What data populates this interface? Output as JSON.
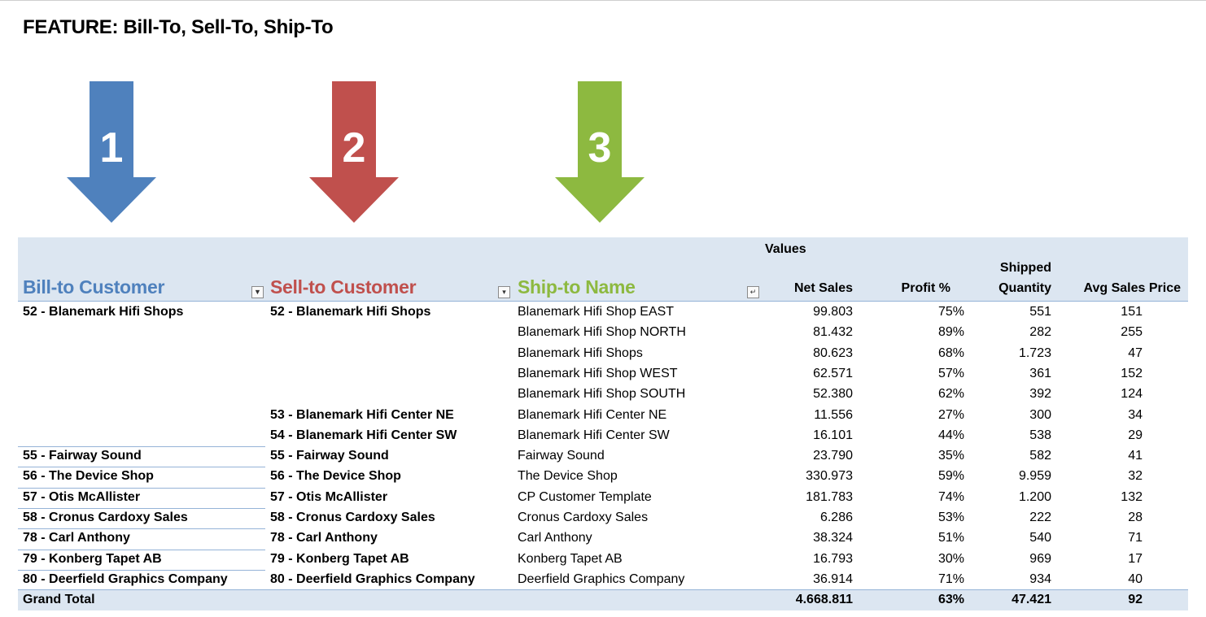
{
  "title": "FEATURE: Bill-To, Sell-To, Ship-To",
  "arrows": [
    {
      "number": "1",
      "color": "#4f81bd"
    },
    {
      "number": "2",
      "color": "#c0504d"
    },
    {
      "number": "3",
      "color": "#8db940"
    }
  ],
  "pivot": {
    "values_label": "Values",
    "headers": {
      "bill_to": "Bill-to Customer",
      "sell_to": "Sell-to Customer",
      "ship_to": "Ship-to Name",
      "net_sales": "Net Sales",
      "profit_pct": "Profit %",
      "shipped_qty_line1": "Shipped",
      "shipped_qty_line2": "Quantity",
      "avg_price": "Avg Sales Price"
    },
    "header_colors": {
      "bill_to": "#4f81bd",
      "sell_to": "#c0504d",
      "ship_to": "#8db940"
    },
    "filter_icons": [
      "filter-funnel-icon",
      "dropdown-arrow-icon",
      "sort-icon"
    ],
    "rows": [
      {
        "bill": "52 - Blanemark Hifi Shops",
        "sell": "52 - Blanemark Hifi Shops",
        "ship": "Blanemark Hifi Shop EAST",
        "net": "99.803",
        "profit": "75%",
        "qty": "551",
        "avg": "151"
      },
      {
        "bill": "",
        "sell": "",
        "ship": "Blanemark Hifi Shop NORTH",
        "net": "81.432",
        "profit": "89%",
        "qty": "282",
        "avg": "255"
      },
      {
        "bill": "",
        "sell": "",
        "ship": "Blanemark Hifi Shops",
        "net": "80.623",
        "profit": "68%",
        "qty": "1.723",
        "avg": "47"
      },
      {
        "bill": "",
        "sell": "",
        "ship": "Blanemark Hifi Shop WEST",
        "net": "62.571",
        "profit": "57%",
        "qty": "361",
        "avg": "152"
      },
      {
        "bill": "",
        "sell": "",
        "ship": "Blanemark Hifi Shop SOUTH",
        "net": "52.380",
        "profit": "62%",
        "qty": "392",
        "avg": "124"
      },
      {
        "bill": "",
        "sell": "53 - Blanemark Hifi Center NE",
        "ship": "Blanemark Hifi Center NE",
        "net": "11.556",
        "profit": "27%",
        "qty": "300",
        "avg": "34"
      },
      {
        "bill": "",
        "sell": "54 - Blanemark Hifi Center SW",
        "ship": "Blanemark Hifi Center SW",
        "net": "16.101",
        "profit": "44%",
        "qty": "538",
        "avg": "29"
      },
      {
        "bill": "55 - Fairway Sound",
        "sell": "55 - Fairway Sound",
        "ship": "Fairway Sound",
        "net": "23.790",
        "profit": "35%",
        "qty": "582",
        "avg": "41"
      },
      {
        "bill": "56 - The Device Shop",
        "sell": "56 - The Device Shop",
        "ship": "The Device Shop",
        "net": "330.973",
        "profit": "59%",
        "qty": "9.959",
        "avg": "32"
      },
      {
        "bill": "57 - Otis McAllister",
        "sell": "57 - Otis McAllister",
        "ship": "CP Customer Template",
        "net": "181.783",
        "profit": "74%",
        "qty": "1.200",
        "avg": "132"
      },
      {
        "bill": "58 - Cronus Cardoxy Sales",
        "sell": "58 - Cronus Cardoxy Sales",
        "ship": "Cronus Cardoxy Sales",
        "net": "6.286",
        "profit": "53%",
        "qty": "222",
        "avg": "28"
      },
      {
        "bill": "78 - Carl Anthony",
        "sell": "78 - Carl Anthony",
        "ship": "Carl Anthony",
        "net": "38.324",
        "profit": "51%",
        "qty": "540",
        "avg": "71"
      },
      {
        "bill": "79 - Konberg Tapet AB",
        "sell": "79 - Konberg Tapet AB",
        "ship": "Konberg Tapet AB",
        "net": "16.793",
        "profit": "30%",
        "qty": "969",
        "avg": "17"
      },
      {
        "bill": "80 - Deerfield Graphics Company",
        "sell": "80 - Deerfield Graphics Company",
        "ship": "Deerfield Graphics Company",
        "net": "36.914",
        "profit": "71%",
        "qty": "934",
        "avg": "40"
      }
    ],
    "grand_total": {
      "label": "Grand Total",
      "net": "4.668.811",
      "profit": "63%",
      "qty": "47.421",
      "avg": "92"
    }
  }
}
